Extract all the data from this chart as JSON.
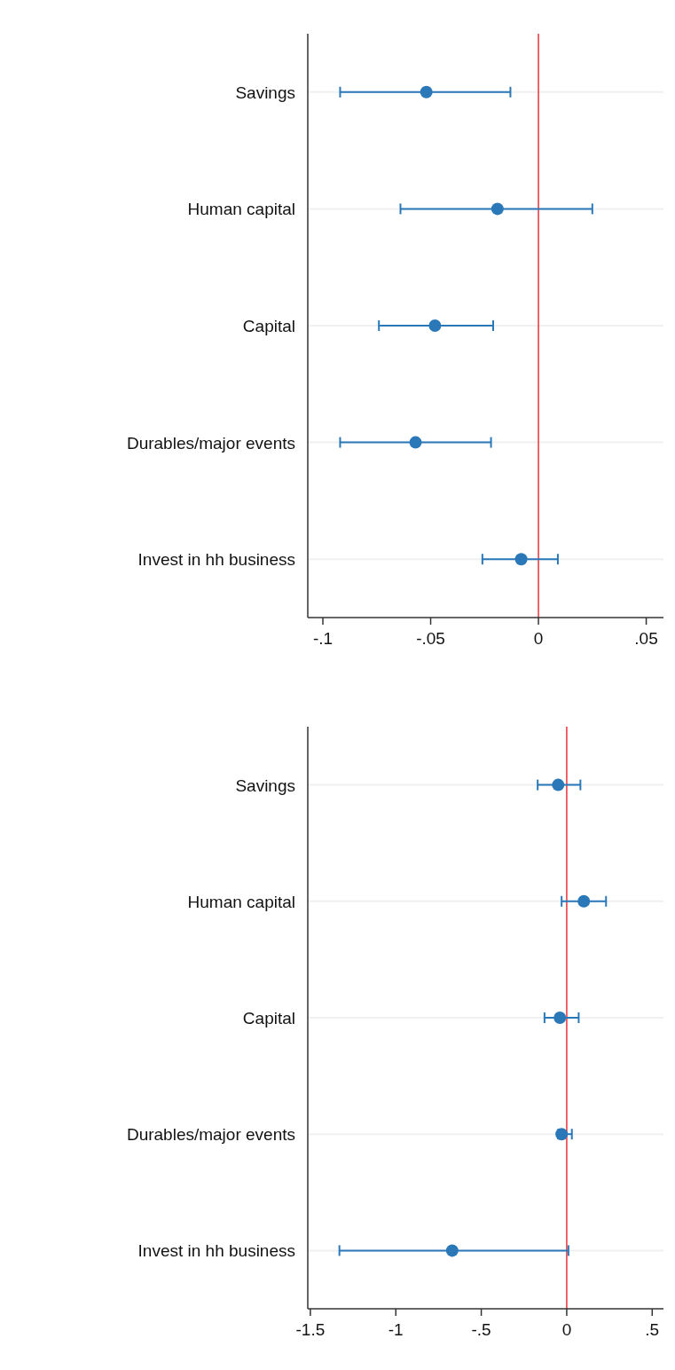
{
  "chart_data": [
    {
      "type": "scatter",
      "orientation": "horizontal",
      "categories": [
        "Savings",
        "Human capital",
        "Capital",
        "Durables/major events",
        "Invest in hh business"
      ],
      "color": "#2a78b8",
      "values": [
        -0.052,
        -0.019,
        -0.048,
        -0.057,
        -0.008
      ],
      "errors": [
        [
          -0.092,
          -0.013
        ],
        [
          -0.064,
          0.025
        ],
        [
          -0.074,
          -0.021
        ],
        [
          -0.092,
          -0.022
        ],
        [
          -0.026,
          0.009
        ]
      ],
      "xlim": [
        -0.107,
        0.058
      ],
      "xticks": [
        {
          "value": -0.1,
          "label": "-.1"
        },
        {
          "value": -0.05,
          "label": "-.05"
        },
        {
          "value": 0,
          "label": "0"
        },
        {
          "value": 0.05,
          "label": ".05"
        }
      ],
      "ref_lines": [
        {
          "axis": "x",
          "value": 0,
          "color": "#e8333a"
        }
      ],
      "grid": "y",
      "marker": "circle"
    },
    {
      "type": "scatter",
      "orientation": "horizontal",
      "categories": [
        "Savings",
        "Human capital",
        "Capital",
        "Durables/major events",
        "Invest in hh business"
      ],
      "color": "#2a78b8",
      "values": [
        -0.05,
        0.1,
        -0.04,
        -0.03,
        -0.67
      ],
      "errors": [
        [
          -0.17,
          0.08
        ],
        [
          -0.03,
          0.23
        ],
        [
          -0.13,
          0.07
        ],
        [
          -0.05,
          0.03
        ],
        [
          -1.33,
          0.01
        ]
      ],
      "xlim": [
        -1.515,
        0.566
      ],
      "xticks": [
        {
          "value": -1.5,
          "label": "-1.5"
        },
        {
          "value": -1,
          "label": "-1"
        },
        {
          "value": -0.5,
          "label": "-.5"
        },
        {
          "value": 0,
          "label": "0"
        },
        {
          "value": 0.5,
          "label": ".5"
        }
      ],
      "ref_lines": [
        {
          "axis": "x",
          "value": 0,
          "color": "#e8333a"
        }
      ],
      "grid": "y",
      "marker": "circle"
    }
  ]
}
